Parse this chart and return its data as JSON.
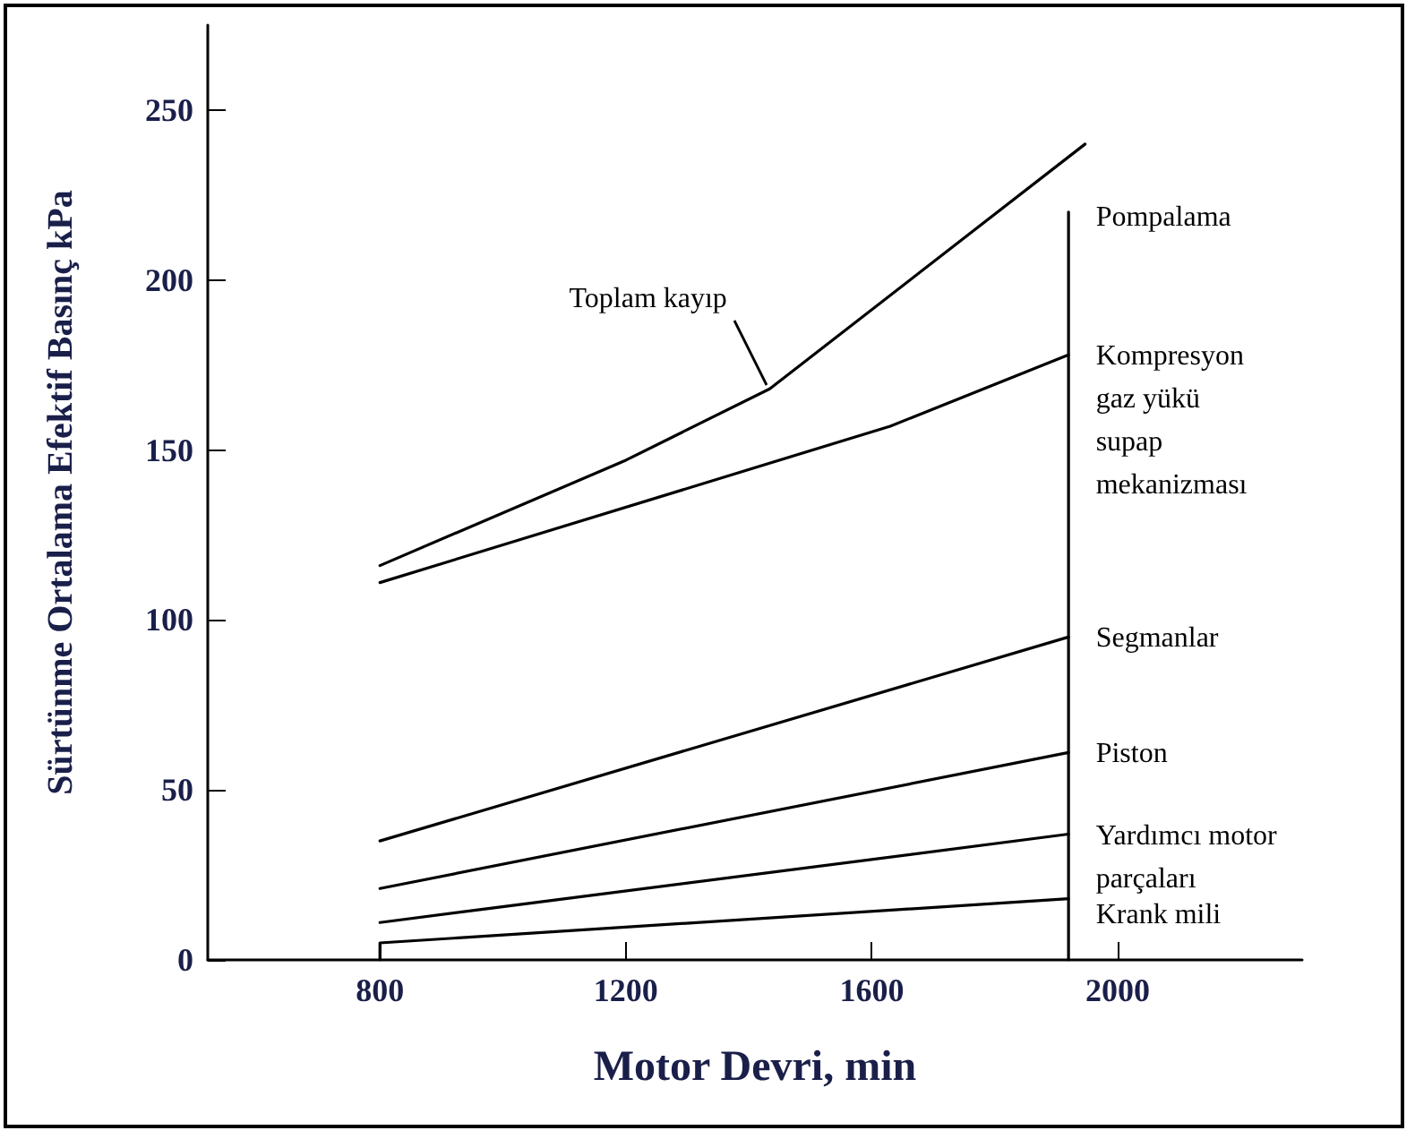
{
  "chart_data": {
    "type": "line",
    "xlabel": "Motor Devri, min",
    "ylabel": "Sürtünme Ortalama Efektif Basınç kPa",
    "xlim": [
      520,
      2300
    ],
    "xticks": [
      800,
      1200,
      1600,
      2000
    ],
    "ylim": [
      0,
      275
    ],
    "yticks": [
      0,
      50,
      100,
      150,
      200,
      250
    ],
    "grid": false,
    "marker": "none",
    "line_style": "solid",
    "series": [
      {
        "name": "Toplam kayıp",
        "color": "#000000",
        "x": [
          800,
          1200,
          1434,
          1947
        ],
        "values": [
          116,
          147,
          168,
          240
        ]
      },
      {
        "name": "Kompresyon\ngaz yükü\nsupap\nmekanizması",
        "color": "#000000",
        "x": [
          800,
          1630,
          1920
        ],
        "values": [
          111,
          157,
          178
        ]
      },
      {
        "name": "Segmanlar",
        "color": "#000000",
        "x": [
          800,
          1920
        ],
        "values": [
          35,
          95
        ]
      },
      {
        "name": "Piston",
        "color": "#000000",
        "x": [
          800,
          1920
        ],
        "values": [
          21,
          61
        ]
      },
      {
        "name": "Yardımcı motor\nparçaları",
        "color": "#000000",
        "x": [
          800,
          1920
        ],
        "values": [
          11,
          37
        ]
      },
      {
        "name": "Krank mili",
        "color": "#000000",
        "x": [
          800,
          800,
          1920
        ],
        "values": [
          0,
          5,
          18
        ]
      },
      {
        "color": "#000000",
        "x": [
          1920,
          1920
        ],
        "values": [
          0,
          220
        ]
      }
    ],
    "annotations": [
      "Pompalama"
    ]
  }
}
